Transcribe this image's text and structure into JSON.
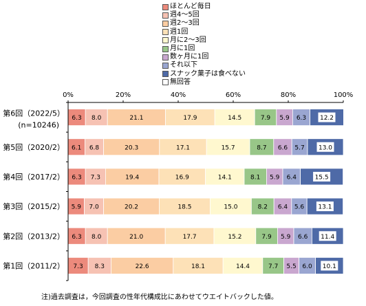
{
  "chart_data": {
    "type": "bar",
    "orientation": "horizontal",
    "stacked": true,
    "title": "",
    "xlabel": "",
    "ylabel": "",
    "xlim": [
      0,
      100
    ],
    "x_tick_labels": [
      "0%",
      "20%",
      "40%",
      "60%",
      "80%",
      "100%"
    ],
    "categories": [
      [
        "第6回（2022/5）",
        "(n=10246)"
      ],
      [
        "第5回（2020/2）"
      ],
      [
        "第4回（2017/2）"
      ],
      [
        "第3回（2015/2）"
      ],
      [
        "第2回（2013/2）"
      ],
      [
        "第1回（2011/2）"
      ]
    ],
    "series": [
      {
        "name": "ほとんど毎日",
        "color": "#ec8a7c",
        "values": [
          6.3,
          6.1,
          6.3,
          5.9,
          6.3,
          7.3
        ]
      },
      {
        "name": "週4～5回",
        "color": "#f6c2b3",
        "values": [
          8.0,
          6.8,
          7.3,
          7.0,
          8.0,
          8.3
        ]
      },
      {
        "name": "週2～3回",
        "color": "#fbcda3",
        "values": [
          21.1,
          20.3,
          19.4,
          20.2,
          21.0,
          22.6
        ]
      },
      {
        "name": "週1回",
        "color": "#fde1b7",
        "values": [
          17.9,
          17.1,
          16.9,
          18.5,
          17.7,
          18.1
        ]
      },
      {
        "name": "月に2～3回",
        "color": "#fff8cf",
        "values": [
          14.5,
          15.7,
          14.1,
          15.0,
          15.2,
          14.4
        ]
      },
      {
        "name": "月に1回",
        "color": "#98c688",
        "values": [
          7.9,
          8.7,
          8.1,
          8.2,
          7.9,
          7.7
        ]
      },
      {
        "name": "数ヶ月に1回",
        "color": "#c9a7cf",
        "values": [
          5.9,
          6.6,
          5.9,
          6.4,
          5.9,
          5.5
        ]
      },
      {
        "name": "それ以下",
        "color": "#9aa6d1",
        "values": [
          6.3,
          5.7,
          6.4,
          5.6,
          6.6,
          6.0
        ]
      },
      {
        "name": "スナック菓子は食べない",
        "color": "#4e6aa7",
        "values": [
          12.2,
          13.0,
          15.5,
          13.1,
          11.4,
          10.1
        ]
      },
      {
        "name": "無回答",
        "color": "#ffffff",
        "values": [
          0,
          0,
          0,
          0,
          0,
          0
        ]
      }
    ],
    "grid": false,
    "legend_position": "top"
  },
  "note": "注)過去調査は，今回調査の性年代構成比にあわせてウエイトバックした値。"
}
